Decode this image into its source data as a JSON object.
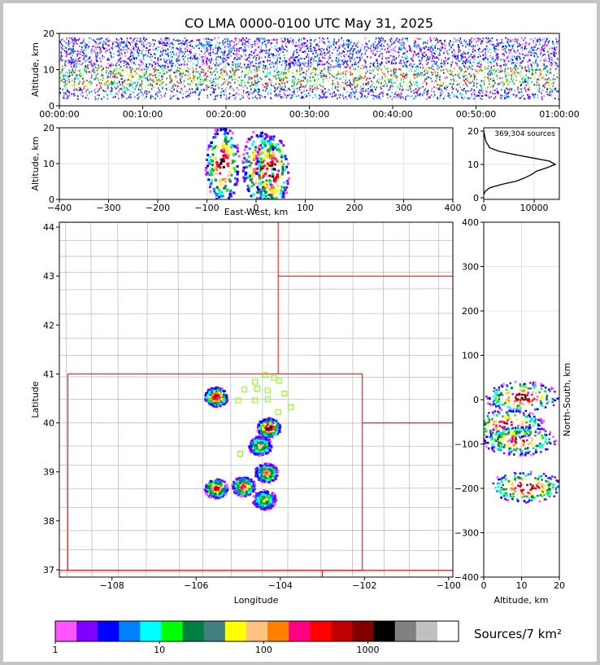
{
  "title": "CO LMA 0000-0100 UTC May 31, 2025",
  "colors": {
    "scale": [
      "#ff55ff",
      "#8000ff",
      "#0000ff",
      "#0080ff",
      "#00ffff",
      "#00ff00",
      "#008040",
      "#408080",
      "#ffff00",
      "#ffc080",
      "#ff8000",
      "#ff0080",
      "#ff0000",
      "#c00000",
      "#800000",
      "#000000",
      "#808080",
      "#c0c0c0",
      "#ffffff"
    ],
    "state_border": "#ff0000",
    "county_border": "#b4b4b4",
    "station_marker": "#80ff00"
  },
  "colorbar": {
    "label": "Sources/7 km²",
    "ticks": [
      {
        "label": "1",
        "value": 1
      },
      {
        "label": "10",
        "value": 10
      },
      {
        "label": "100",
        "value": 100
      },
      {
        "label": "1000",
        "value": 1000
      }
    ]
  },
  "chart_data": [
    {
      "type": "heatmap",
      "title": "CO LMA 0000-0100 UTC May 31, 2025",
      "xlabel": "",
      "ylabel": "Altitude, km",
      "xticks": [
        "00:00:00",
        "00:10:00",
        "00:20:00",
        "00:30:00",
        "00:40:00",
        "00:50:00",
        "01:00:00"
      ],
      "yticks": [
        0,
        10,
        20
      ],
      "ylim": [
        0,
        20
      ],
      "xlim_minutes": [
        0,
        60
      ],
      "series": [
        {
          "altitude_band_km": [
            2,
            19
          ],
          "core_km": [
            5,
            11
          ]
        }
      ]
    },
    {
      "type": "heatmap",
      "xlabel": "East-West, km",
      "ylabel": "Altitude, km",
      "xlim": [
        -400,
        400
      ],
      "ylim": [
        0,
        20
      ],
      "xticks": [
        -400,
        -300,
        -200,
        -100,
        0,
        100,
        200,
        300,
        400
      ],
      "yticks": [
        0,
        10,
        20
      ],
      "cells": [
        {
          "x": -70,
          "z": 10,
          "level": 0.95
        },
        {
          "x": 5,
          "z": 9,
          "level": 0.9
        },
        {
          "x": 30,
          "z": 8,
          "level": 1.0
        }
      ]
    },
    {
      "type": "line",
      "annotation": "369,304 sources",
      "xlim": [
        0,
        15000
      ],
      "ylim": [
        -0.5,
        21
      ],
      "xticks": [
        0,
        10000
      ],
      "yticks": [
        0,
        10,
        20
      ],
      "x": [
        0,
        300,
        1200,
        3500,
        6500,
        8200,
        9500,
        10500,
        12500,
        14200,
        13000,
        9500,
        6000,
        3000,
        1200,
        400,
        0
      ],
      "y": [
        1,
        2,
        3,
        4,
        5,
        6,
        7,
        8,
        9,
        10,
        11,
        12,
        13,
        14,
        15,
        17,
        20
      ]
    },
    {
      "type": "heatmap",
      "xlabel": "Longitude",
      "ylabel": "Latitude",
      "xlim": [
        -109.25,
        -99.9
      ],
      "ylim": [
        36.85,
        44.1
      ],
      "xticks": [
        -108,
        -106,
        -104,
        -102,
        -100
      ],
      "yticks": [
        37,
        38,
        39,
        40,
        41,
        42,
        43,
        44
      ],
      "cells": [
        {
          "lon": -105.55,
          "lat": 40.55,
          "level": 0.9
        },
        {
          "lon": -104.3,
          "lat": 39.92,
          "level": 0.95
        },
        {
          "lon": -104.5,
          "lat": 39.55,
          "level": 0.55
        },
        {
          "lon": -104.35,
          "lat": 39.0,
          "level": 0.65
        },
        {
          "lon": -105.55,
          "lat": 38.68,
          "level": 0.8
        },
        {
          "lon": -104.9,
          "lat": 38.72,
          "level": 0.75
        },
        {
          "lon": -104.4,
          "lat": 38.45,
          "level": 0.5
        }
      ],
      "stations": [
        {
          "lon": -104.35,
          "lat": 40.98
        },
        {
          "lon": -104.15,
          "lat": 40.92
        },
        {
          "lon": -104.03,
          "lat": 40.86
        },
        {
          "lon": -104.6,
          "lat": 40.84
        },
        {
          "lon": -104.85,
          "lat": 40.68
        },
        {
          "lon": -104.55,
          "lat": 40.7
        },
        {
          "lon": -104.3,
          "lat": 40.66
        },
        {
          "lon": -103.9,
          "lat": 40.6
        },
        {
          "lon": -105.0,
          "lat": 40.46
        },
        {
          "lon": -104.6,
          "lat": 40.46
        },
        {
          "lon": -104.3,
          "lat": 40.48
        },
        {
          "lon": -103.75,
          "lat": 40.32
        },
        {
          "lon": -104.05,
          "lat": 40.22
        },
        {
          "lon": -104.95,
          "lat": 39.37
        }
      ]
    },
    {
      "type": "heatmap",
      "xlabel": "Altitude, km",
      "ylabel": "North-South, km",
      "xlim": [
        0,
        20
      ],
      "ylim": [
        -400,
        400
      ],
      "xticks": [
        0,
        10,
        20
      ],
      "yticks": [
        -400,
        -300,
        -200,
        -100,
        0,
        100,
        200,
        300,
        400
      ],
      "cells": [
        {
          "z": 10,
          "y": 8,
          "level": 0.9
        },
        {
          "z": 6,
          "y": -55,
          "level": 0.85
        },
        {
          "z": 9,
          "y": -90,
          "level": 0.8
        },
        {
          "z": 11,
          "y": -195,
          "level": 0.9
        }
      ]
    }
  ]
}
